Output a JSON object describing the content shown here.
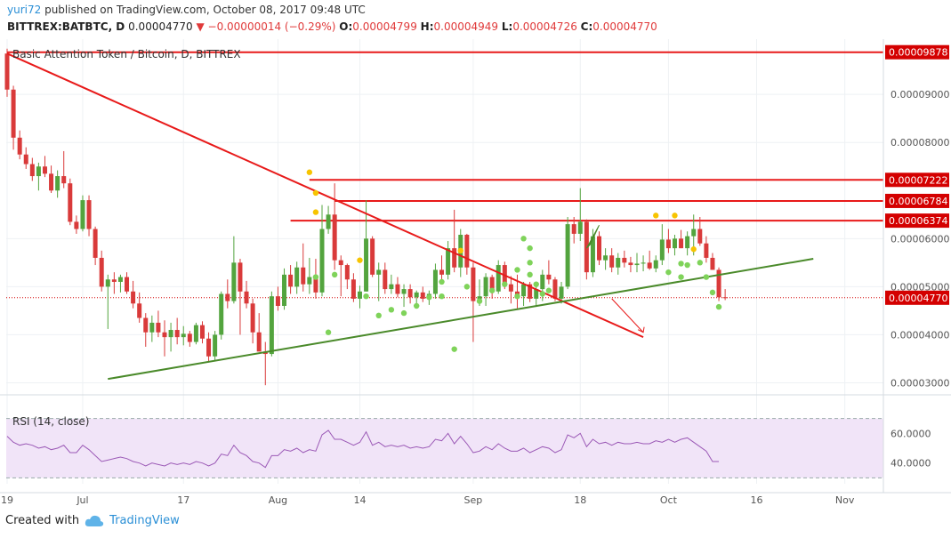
{
  "header": {
    "publisher": "yuri72",
    "published_text": "published on TradingView.com, October 08, 2017 09:48 UTC",
    "symbol": "BITTREX:BATBTC, D",
    "last": "0.00004770",
    "change": "−0.00000014 (−0.29%)",
    "o_label": "O:",
    "o": "0.00004799",
    "h_label": "H:",
    "h": "0.00004949",
    "l_label": "L:",
    "l": "0.00004726",
    "c_label": "C:",
    "c": "0.00004770"
  },
  "footer": {
    "created_with": "Created with",
    "brand": "TradingView"
  },
  "colors": {
    "up": "#53a43e",
    "down": "#d93a3a",
    "resistance": "#e81a1a",
    "trend_support": "#4a8a2a",
    "rsi_line": "#9b59b6",
    "rsi_band": "#f1e4f8",
    "current_price": "#d40000",
    "dot_yellow": "#f7c400",
    "dot_green": "#7fd35a"
  },
  "chart_data": [
    {
      "type": "candlestick",
      "title": "Basic Attention Token / Bitcoin, D, BITTREX",
      "ylim": [
        2.75e-05,
        0.0001015
      ],
      "y_ticks": [
        "0.00003000",
        "0.00004000",
        "0.00005000",
        "0.00006000",
        "0.00008000",
        "0.00009000"
      ],
      "x_ticks": [
        "19",
        "Jul",
        "17",
        "Aug",
        "14",
        "Sep",
        "18",
        "Oct",
        "16",
        "Nov"
      ],
      "x_tick_days": [
        0,
        12,
        28,
        43,
        56,
        74,
        91,
        105,
        119,
        133
      ],
      "start_date": "2017-06-19",
      "price_labels": [
        {
          "value": 9.878e-05,
          "text": "0.00009878"
        },
        {
          "value": 7.222e-05,
          "text": "0.00007222"
        },
        {
          "value": 6.784e-05,
          "text": "0.00006784"
        },
        {
          "value": 6.374e-05,
          "text": "0.00006374"
        },
        {
          "value": 4.77e-05,
          "text": "0.00004770"
        }
      ],
      "resistance_lines": [
        {
          "from_day": 0,
          "to_day": 128,
          "value": 9.878e-05
        },
        {
          "from_day": 48,
          "to_day": 128,
          "value": 7.222e-05
        },
        {
          "from_day": 52,
          "to_day": 128,
          "value": 6.784e-05
        },
        {
          "from_day": 45,
          "to_day": 128,
          "value": 6.374e-05
        }
      ],
      "trendlines": [
        {
          "name": "descending",
          "points": [
            [
              0,
              9.85e-05
            ],
            [
              101,
              3.95e-05
            ]
          ]
        },
        {
          "name": "support",
          "points": [
            [
              16,
              3.08e-05
            ],
            [
              128,
              5.58e-05
            ]
          ]
        }
      ],
      "projection_arrow": [
        [
          96,
          4.75e-05
        ],
        [
          101,
          4.05e-05
        ]
      ],
      "ohlc": [
        [
          9.85e-05,
          9.95e-05,
          8.95e-05,
          9.1e-05
        ],
        [
          9.1e-05,
          9.18e-05,
          7.85e-05,
          8.1e-05
        ],
        [
          8.1e-05,
          8.25e-05,
          7.65e-05,
          7.75e-05
        ],
        [
          7.75e-05,
          7.9e-05,
          7.45e-05,
          7.55e-05
        ],
        [
          7.55e-05,
          7.68e-05,
          7.2e-05,
          7.3e-05
        ],
        [
          7.3e-05,
          7.58e-05,
          7e-05,
          7.5e-05
        ],
        [
          7.5e-05,
          7.72e-05,
          7.28e-05,
          7.35e-05
        ],
        [
          7.35e-05,
          7.52e-05,
          6.95e-05,
          7e-05
        ],
        [
          7e-05,
          7.42e-05,
          6.85e-05,
          7.3e-05
        ],
        [
          7.3e-05,
          7.82e-05,
          7.05e-05,
          7.15e-05
        ],
        [
          7.15e-05,
          7.25e-05,
          6.28e-05,
          6.35e-05
        ],
        [
          6.35e-05,
          6.48e-05,
          6.1e-05,
          6.2e-05
        ],
        [
          6.2e-05,
          6.9e-05,
          6.15e-05,
          6.8e-05
        ],
        [
          6.8e-05,
          6.9e-05,
          6.05e-05,
          6.2e-05
        ],
        [
          6.2e-05,
          6.25e-05,
          5.45e-05,
          5.6e-05
        ],
        [
          5.6e-05,
          5.75e-05,
          4.9e-05,
          5e-05
        ],
        [
          5e-05,
          5.25e-05,
          4.12e-05,
          5.15e-05
        ],
        [
          5.15e-05,
          5.3e-05,
          4.85e-05,
          5.1e-05
        ],
        [
          5.1e-05,
          5.25e-05,
          4.88e-05,
          5.2e-05
        ],
        [
          5.2e-05,
          5.3e-05,
          4.85e-05,
          4.9e-05
        ],
        [
          4.9e-05,
          5.12e-05,
          4.55e-05,
          4.65e-05
        ],
        [
          4.65e-05,
          4.88e-05,
          4.25e-05,
          4.35e-05
        ],
        [
          4.35e-05,
          4.45e-05,
          3.75e-05,
          4.05e-05
        ],
        [
          4.05e-05,
          4.4e-05,
          3.85e-05,
          4.25e-05
        ],
        [
          4.25e-05,
          4.5e-05,
          3.95e-05,
          4.05e-05
        ],
        [
          4.05e-05,
          4.3e-05,
          3.55e-05,
          3.95e-05
        ],
        [
          3.95e-05,
          4.25e-05,
          3.65e-05,
          4.1e-05
        ],
        [
          4.1e-05,
          4.35e-05,
          3.8e-05,
          3.95e-05
        ],
        [
          3.95e-05,
          4.18e-05,
          3.78e-05,
          4.02e-05
        ],
        [
          4.02e-05,
          4.08e-05,
          3.75e-05,
          3.85e-05
        ],
        [
          3.85e-05,
          4.25e-05,
          3.8e-05,
          4.2e-05
        ],
        [
          4.2e-05,
          4.28e-05,
          3.82e-05,
          3.92e-05
        ],
        [
          3.92e-05,
          4.05e-05,
          3.45e-05,
          3.55e-05
        ],
        [
          3.55e-05,
          4.08e-05,
          3.45e-05,
          4e-05
        ],
        [
          4e-05,
          4.9e-05,
          3.9e-05,
          4.85e-05
        ],
        [
          4.85e-05,
          5.15e-05,
          4.55e-05,
          4.7e-05
        ],
        [
          4.7e-05,
          6.05e-05,
          4.65e-05,
          5.5e-05
        ],
        [
          5.5e-05,
          5.58e-05,
          4e-05,
          4.9e-05
        ],
        [
          4.9e-05,
          5.12e-05,
          4.55e-05,
          4.65e-05
        ],
        [
          4.65e-05,
          4.75e-05,
          3.82e-05,
          4.05e-05
        ],
        [
          4.05e-05,
          4.45e-05,
          3.65e-05,
          3.65e-05
        ],
        [
          3.65e-05,
          3.85e-05,
          2.95e-05,
          3.6e-05
        ],
        [
          3.6e-05,
          4.9e-05,
          3.55e-05,
          4.8e-05
        ],
        [
          4.8e-05,
          5e-05,
          4.5e-05,
          4.6e-05
        ],
        [
          4.6e-05,
          5.38e-05,
          4.52e-05,
          5.25e-05
        ],
        [
          5.25e-05,
          5.45e-05,
          4.85e-05,
          5e-05
        ],
        [
          5e-05,
          5.52e-05,
          4.85e-05,
          5.4e-05
        ],
        [
          5.4e-05,
          5.9e-05,
          4.9e-05,
          5.05e-05
        ],
        [
          5.05e-05,
          5.6e-05,
          4.85e-05,
          5.2e-05
        ],
        [
          5.2e-05,
          5.58e-05,
          4.75e-05,
          4.88e-05
        ],
        [
          4.88e-05,
          6.7e-05,
          4.8e-05,
          6.2e-05
        ],
        [
          6.2e-05,
          6.68e-05,
          6.1e-05,
          6.5e-05
        ],
        [
          6.5e-05,
          7.15e-05,
          5.35e-05,
          5.55e-05
        ],
        [
          5.55e-05,
          5.65e-05,
          4.8e-05,
          5.45e-05
        ],
        [
          5.45e-05,
          5.48e-05,
          4.95e-05,
          5.15e-05
        ],
        [
          5.15e-05,
          5.28e-05,
          4.68e-05,
          4.75e-05
        ],
        [
          4.75e-05,
          5.02e-05,
          4.55e-05,
          4.9e-05
        ],
        [
          4.9e-05,
          6.8e-05,
          4.9e-05,
          6e-05
        ],
        [
          6e-05,
          6.05e-05,
          5.2e-05,
          5.25e-05
        ],
        [
          5.25e-05,
          5.5e-05,
          4.7e-05,
          5.35e-05
        ],
        [
          5.35e-05,
          5.5e-05,
          4.85e-05,
          4.95e-05
        ],
        [
          4.95e-05,
          5.25e-05,
          4.85e-05,
          5.05e-05
        ],
        [
          5.05e-05,
          5.2e-05,
          4.78e-05,
          4.85e-05
        ],
        [
          4.85e-05,
          5.05e-05,
          4.58e-05,
          4.95e-05
        ],
        [
          4.95e-05,
          5.05e-05,
          4.65e-05,
          4.78e-05
        ],
        [
          4.78e-05,
          4.92e-05,
          4.62e-05,
          4.88e-05
        ],
        [
          4.88e-05,
          5e-05,
          4.68e-05,
          4.75e-05
        ],
        [
          4.75e-05,
          4.92e-05,
          4.62e-05,
          4.85e-05
        ],
        [
          4.85e-05,
          5.48e-05,
          4.75e-05,
          5.35e-05
        ],
        [
          5.35e-05,
          5.65e-05,
          5.1e-05,
          5.25e-05
        ],
        [
          5.25e-05,
          5.95e-05,
          5.15e-05,
          5.8e-05
        ],
        [
          5.8e-05,
          6.6e-05,
          5.3e-05,
          5.4e-05
        ],
        [
          5.4e-05,
          6.2e-05,
          5.2e-05,
          6.08e-05
        ],
        [
          6.08e-05,
          6.1e-05,
          5.25e-05,
          5.4e-05
        ],
        [
          5.4e-05,
          5.5e-05,
          3.85e-05,
          4.7e-05
        ],
        [
          4.7e-05,
          5.15e-05,
          4.6e-05,
          4.8e-05
        ],
        [
          4.8e-05,
          5.28e-05,
          4.6e-05,
          5.2e-05
        ],
        [
          5.2e-05,
          5.25e-05,
          4.75e-05,
          4.9e-05
        ],
        [
          4.9e-05,
          5.55e-05,
          4.85e-05,
          5.45e-05
        ],
        [
          5.45e-05,
          5.52e-05,
          4.95e-05,
          5.05e-05
        ],
        [
          5.05e-05,
          5.22e-05,
          4.65e-05,
          4.9e-05
        ],
        [
          4.9e-05,
          5.25e-05,
          4.55e-05,
          4.8e-05
        ],
        [
          4.8e-05,
          5.1e-05,
          4.6e-05,
          5.05e-05
        ],
        [
          5.05e-05,
          5.1e-05,
          4.68e-05,
          4.75e-05
        ],
        [
          4.75e-05,
          5.02e-05,
          4.58e-05,
          4.95e-05
        ],
        [
          4.95e-05,
          5.35e-05,
          4.7e-05,
          5.25e-05
        ],
        [
          5.25e-05,
          5.55e-05,
          5.05e-05,
          5.15e-05
        ],
        [
          5.15e-05,
          5.2e-05,
          4.7e-05,
          4.75e-05
        ],
        [
          4.75e-05,
          5.1e-05,
          4.65e-05,
          5e-05
        ],
        [
          5e-05,
          6.45e-05,
          4.95e-05,
          6.3e-05
        ],
        [
          6.3e-05,
          6.45e-05,
          5.9e-05,
          6.1e-05
        ],
        [
          6.1e-05,
          7.05e-05,
          5.95e-05,
          6.35e-05
        ],
        [
          6.35e-05,
          6.4e-05,
          5.15e-05,
          5.3e-05
        ],
        [
          5.3e-05,
          6.2e-05,
          5.2e-05,
          6.05e-05
        ],
        [
          6.05e-05,
          6.15e-05,
          5.45e-05,
          5.55e-05
        ],
        [
          5.55e-05,
          5.8e-05,
          5.35e-05,
          5.65e-05
        ],
        [
          5.65e-05,
          5.8e-05,
          5.3e-05,
          5.4e-05
        ],
        [
          5.4e-05,
          5.7e-05,
          5.25e-05,
          5.6e-05
        ],
        [
          5.6e-05,
          5.75e-05,
          5.4e-05,
          5.5e-05
        ],
        [
          5.5e-05,
          5.62e-05,
          5.3e-05,
          5.45e-05
        ],
        [
          5.45e-05,
          5.7e-05,
          5.3e-05,
          5.48e-05
        ],
        [
          5.48e-05,
          5.65e-05,
          5.32e-05,
          5.5e-05
        ],
        [
          5.5e-05,
          5.75e-05,
          5.35e-05,
          5.38e-05
        ],
        [
          5.38e-05,
          5.65e-05,
          5.3e-05,
          5.55e-05
        ],
        [
          5.55e-05,
          6.3e-05,
          5.45e-05,
          5.98e-05
        ],
        [
          5.98e-05,
          6.2e-05,
          5.7e-05,
          5.8e-05
        ],
        [
          5.8e-05,
          6.08e-05,
          5.65e-05,
          6e-05
        ],
        [
          6e-05,
          6.18e-05,
          5.8e-05,
          5.8e-05
        ],
        [
          5.8e-05,
          6.15e-05,
          5.65e-05,
          6.05e-05
        ],
        [
          6.05e-05,
          6.5e-05,
          5.65e-05,
          6.2e-05
        ],
        [
          6.2e-05,
          6.45e-05,
          5.85e-05,
          5.9e-05
        ],
        [
          5.9e-05,
          6.05e-05,
          5.5e-05,
          5.6e-05
        ],
        [
          5.6e-05,
          5.7e-05,
          5.35e-05,
          5.35e-05
        ],
        [
          5.35e-05,
          5.4e-05,
          4.7e-05,
          4.78e-05
        ],
        [
          4.78e-05,
          4.95e-05,
          4.72e-05,
          4.77e-05
        ]
      ],
      "yellow_dots": [
        [
          48,
          7.38e-05
        ],
        [
          49,
          6.95e-05
        ],
        [
          49,
          6.55e-05
        ],
        [
          56,
          5.55e-05
        ],
        [
          72,
          5.75e-05
        ],
        [
          103,
          6.48e-05
        ],
        [
          106,
          6.48e-05
        ],
        [
          109,
          5.78e-05
        ]
      ],
      "green_dots": [
        [
          49,
          5.2e-05
        ],
        [
          52,
          5.25e-05
        ],
        [
          51,
          4.05e-05
        ],
        [
          57,
          4.8e-05
        ],
        [
          59,
          4.4e-05
        ],
        [
          61,
          4.52e-05
        ],
        [
          63,
          4.45e-05
        ],
        [
          65,
          4.6e-05
        ],
        [
          67,
          4.78e-05
        ],
        [
          69,
          5.1e-05
        ],
        [
          69,
          4.8e-05
        ],
        [
          71,
          3.7e-05
        ],
        [
          73,
          5e-05
        ],
        [
          75,
          4.7e-05
        ],
        [
          77,
          4.92e-05
        ],
        [
          79,
          5.05e-05
        ],
        [
          81,
          5.35e-05
        ],
        [
          81,
          4.8e-05
        ],
        [
          82,
          6e-05
        ],
        [
          83,
          5.8e-05
        ],
        [
          83,
          5.5e-05
        ],
        [
          83,
          5.25e-05
        ],
        [
          84,
          5.05e-05
        ],
        [
          85,
          4.85e-05
        ],
        [
          86,
          4.92e-05
        ],
        [
          105,
          5.3e-05
        ],
        [
          107,
          5.48e-05
        ],
        [
          107,
          5.2e-05
        ],
        [
          108,
          5.45e-05
        ],
        [
          110,
          5.5e-05
        ],
        [
          111,
          5.2e-05
        ],
        [
          112,
          4.88e-05
        ],
        [
          113,
          4.58e-05
        ]
      ]
    },
    {
      "type": "line",
      "title": "RSI (14, close)",
      "ylim": [
        26,
        74
      ],
      "y_ticks": [
        "40.0000",
        "60.0000"
      ],
      "band": [
        30,
        70
      ],
      "values": [
        58,
        54,
        52,
        53,
        52,
        50,
        51,
        49,
        50,
        52,
        47,
        47,
        52,
        49,
        45,
        41,
        42,
        43,
        44,
        43,
        41,
        40,
        38,
        40,
        39,
        38,
        40,
        39,
        40,
        39,
        41,
        40,
        38,
        40,
        46,
        45,
        52,
        47,
        45,
        41,
        40,
        37,
        45,
        45,
        49,
        48,
        50,
        47,
        49,
        48,
        59,
        62,
        56,
        56,
        54,
        52,
        54,
        61,
        52,
        54,
        51,
        52,
        51,
        52,
        50,
        51,
        50,
        51,
        56,
        55,
        60,
        53,
        58,
        53,
        47,
        48,
        51,
        49,
        53,
        50,
        48,
        48,
        50,
        47,
        49,
        51,
        50,
        47,
        49,
        59,
        57,
        60,
        51,
        56,
        53,
        54,
        52,
        54,
        53,
        53,
        54,
        53,
        53,
        55,
        54,
        56,
        54,
        56,
        57,
        54,
        51,
        48,
        41,
        41
      ]
    }
  ]
}
